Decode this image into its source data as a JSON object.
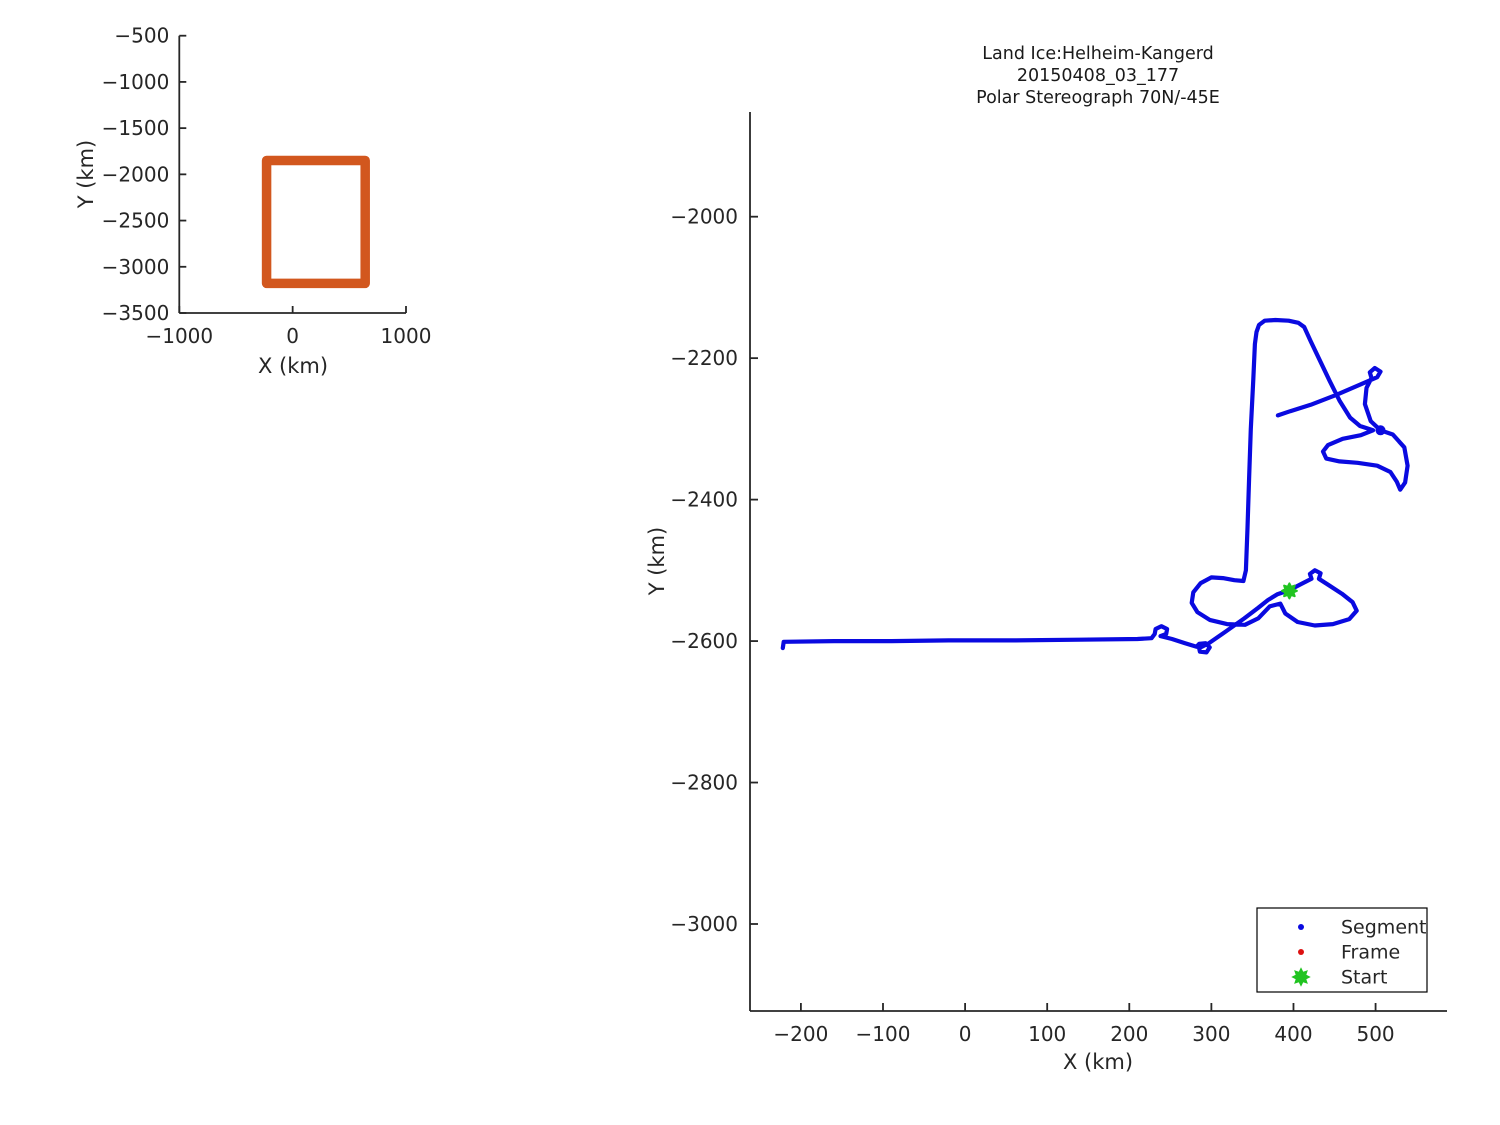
{
  "figure": {
    "background": "#ffffff",
    "title_lines": [
      "Land Ice:Helheim-Kangerd",
      "20150408_03_177",
      "Polar Stereograph 70N/-45E"
    ]
  },
  "colors": {
    "segment_blue": "#0a0ae0",
    "frame_red": "#dd1111",
    "start_green": "#21c421",
    "coverage_orange": "#d2571e",
    "axis_gray": "#262626"
  },
  "chart_data": [
    {
      "id": "overview",
      "type": "line",
      "title": "",
      "xlabel": "X (km)",
      "ylabel": "Y (km)",
      "xlim": [
        -1000,
        1000
      ],
      "ylim": [
        -3500,
        -500
      ],
      "xticks": [
        -1000,
        0,
        1000
      ],
      "yticks": [
        -500,
        -1000,
        -1500,
        -2000,
        -2500,
        -3000,
        -3500
      ],
      "grid": false,
      "series": [
        {
          "name": "coverage-extent-box",
          "type": "rect",
          "color": "#d2571e",
          "linewidth": 9.5,
          "x_range": [
            -230,
            640
          ],
          "y_range": [
            -3180,
            -1850
          ]
        }
      ]
    },
    {
      "id": "main",
      "type": "line",
      "title": "Land Ice:Helheim-Kangerd 20150408_03_177 Polar Stereograph 70N/-45E",
      "xlabel": "X (km)",
      "ylabel": "Y (km)",
      "xlim": [
        -262,
        587
      ],
      "ylim": [
        -3123,
        -1852
      ],
      "xticks": [
        -200,
        -100,
        0,
        100,
        200,
        300,
        400,
        500
      ],
      "yticks": [
        -3000,
        -2800,
        -2600,
        -2400,
        -2200,
        -2000
      ],
      "grid": false,
      "legend": {
        "position": "lower right",
        "entries": [
          {
            "label": "Segment",
            "marker": "dot",
            "color": "#0a0ae0"
          },
          {
            "label": "Frame",
            "marker": "dot",
            "color": "#dd1111"
          },
          {
            "label": "Start",
            "marker": "star",
            "color": "#21c421"
          }
        ]
      },
      "series": [
        {
          "name": "Segment",
          "color": "#0a0ae0",
          "linewidth": 4.2,
          "marker": "dot",
          "points": [
            [
              -222,
              -2610
            ],
            [
              -221,
              -2601
            ],
            [
              -160,
              -2600
            ],
            [
              -90,
              -2600
            ],
            [
              -20,
              -2599
            ],
            [
              60,
              -2599
            ],
            [
              140,
              -2598
            ],
            [
              210,
              -2597
            ],
            [
              227,
              -2596
            ],
            [
              231,
              -2590
            ],
            [
              232,
              -2583
            ],
            [
              239,
              -2579
            ],
            [
              246,
              -2583
            ],
            [
              245,
              -2590
            ],
            [
              238,
              -2593
            ],
            [
              252,
              -2597
            ],
            [
              268,
              -2603
            ],
            [
              282,
              -2608
            ],
            [
              285,
              -2604
            ],
            [
              293,
              -2603
            ],
            [
              298,
              -2609
            ],
            [
              294,
              -2616
            ],
            [
              286,
              -2615
            ],
            [
              285,
              -2610
            ],
            [
              297,
              -2603
            ],
            [
              318,
              -2586
            ],
            [
              340,
              -2568
            ],
            [
              357,
              -2553
            ],
            [
              369,
              -2542
            ],
            [
              380,
              -2534
            ],
            [
              395,
              -2528
            ],
            [
              410,
              -2519
            ],
            [
              422,
              -2512
            ],
            [
              420,
              -2505
            ],
            [
              426,
              -2500
            ],
            [
              433,
              -2504
            ],
            [
              431,
              -2512
            ],
            [
              443,
              -2521
            ],
            [
              459,
              -2533
            ],
            [
              472,
              -2545
            ],
            [
              477,
              -2557
            ],
            [
              468,
              -2569
            ],
            [
              448,
              -2576
            ],
            [
              426,
              -2578
            ],
            [
              405,
              -2573
            ],
            [
              390,
              -2561
            ],
            [
              384,
              -2547
            ],
            [
              371,
              -2551
            ],
            [
              357,
              -2568
            ],
            [
              341,
              -2577
            ],
            [
              319,
              -2576
            ],
            [
              298,
              -2570
            ],
            [
              283,
              -2559
            ],
            [
              276,
              -2546
            ],
            [
              278,
              -2531
            ],
            [
              287,
              -2518
            ],
            [
              300,
              -2510
            ],
            [
              314,
              -2511
            ],
            [
              328,
              -2514
            ],
            [
              339,
              -2515
            ],
            [
              342,
              -2500
            ],
            [
              344,
              -2440
            ],
            [
              346,
              -2370
            ],
            [
              348,
              -2300
            ],
            [
              351,
              -2230
            ],
            [
              353,
              -2180
            ],
            [
              355,
              -2163
            ],
            [
              358,
              -2153
            ],
            [
              365,
              -2147
            ],
            [
              378,
              -2146
            ],
            [
              394,
              -2147
            ],
            [
              406,
              -2150
            ],
            [
              413,
              -2156
            ],
            [
              421,
              -2176
            ],
            [
              432,
              -2203
            ],
            [
              444,
              -2232
            ],
            [
              456,
              -2260
            ],
            [
              469,
              -2284
            ],
            [
              481,
              -2296
            ],
            [
              497,
              -2302
            ],
            [
              482,
              -2309
            ],
            [
              460,
              -2314
            ],
            [
              442,
              -2323
            ],
            [
              436,
              -2332
            ],
            [
              440,
              -2342
            ],
            [
              456,
              -2346
            ],
            [
              478,
              -2348
            ],
            [
              502,
              -2352
            ],
            [
              518,
              -2361
            ],
            [
              526,
              -2375
            ],
            [
              530,
              -2386
            ],
            [
              536,
              -2376
            ],
            [
              539,
              -2352
            ],
            [
              535,
              -2326
            ],
            [
              521,
              -2308
            ],
            [
              506,
              -2302
            ],
            [
              494,
              -2289
            ],
            [
              487,
              -2265
            ],
            [
              489,
              -2242
            ],
            [
              495,
              -2228
            ],
            [
              493,
              -2220
            ],
            [
              499,
              -2214
            ],
            [
              506,
              -2219
            ],
            [
              502,
              -2227
            ],
            [
              482,
              -2237
            ],
            [
              452,
              -2252
            ],
            [
              421,
              -2266
            ],
            [
              396,
              -2275
            ],
            [
              381,
              -2281
            ]
          ]
        },
        {
          "name": "Frame",
          "color": "#dd1111",
          "marker": "dot",
          "points": []
        },
        {
          "name": "Start",
          "color": "#21c421",
          "marker": "star",
          "points": [
            [
              395,
              -2529
            ]
          ]
        }
      ],
      "annotations": {
        "junction_dot": [
          506,
          -2302
        ]
      }
    }
  ]
}
